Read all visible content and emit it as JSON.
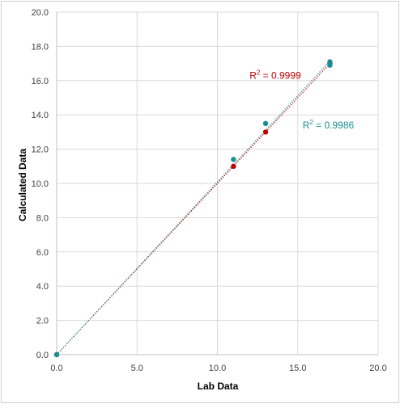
{
  "chart_data": {
    "type": "scatter",
    "title": "",
    "xlabel": "Lab Data",
    "ylabel": "Calculated Data",
    "xlim": [
      0,
      20
    ],
    "ylim": [
      0,
      20
    ],
    "x_ticks": [
      "0.0",
      "5.0",
      "10.0",
      "15.0",
      "20.0"
    ],
    "y_ticks": [
      "0.0",
      "2.0",
      "4.0",
      "6.0",
      "8.0",
      "10.0",
      "12.0",
      "14.0",
      "16.0",
      "18.0",
      "20.0"
    ],
    "grid": true,
    "legend": "none",
    "series": [
      {
        "color": "#c00000",
        "points": [
          [
            0,
            0
          ],
          [
            11,
            11.0
          ],
          [
            13,
            13.0
          ],
          [
            17,
            17.0
          ]
        ],
        "trendline": {
          "style": "dotted",
          "x": [
            0,
            17
          ],
          "y": [
            0,
            17.0
          ]
        },
        "annotation": {
          "r2_prefix": "R",
          "r2_sup": "2",
          "r2_value": " = 0.9999",
          "at": [
            12.0,
            16.1
          ]
        }
      },
      {
        "color": "#1a8f8f",
        "points": [
          [
            0,
            0
          ],
          [
            11,
            11.4
          ],
          [
            13,
            13.5
          ],
          [
            17,
            16.9
          ],
          [
            17,
            17.1
          ]
        ],
        "trendline": {
          "style": "dotted",
          "x": [
            0,
            17
          ],
          "y": [
            0,
            17.15
          ]
        },
        "annotation": {
          "r2_prefix": "R",
          "r2_sup": "2",
          "r2_value": " = 0.9986",
          "at": [
            15.3,
            13.2
          ]
        }
      }
    ]
  }
}
